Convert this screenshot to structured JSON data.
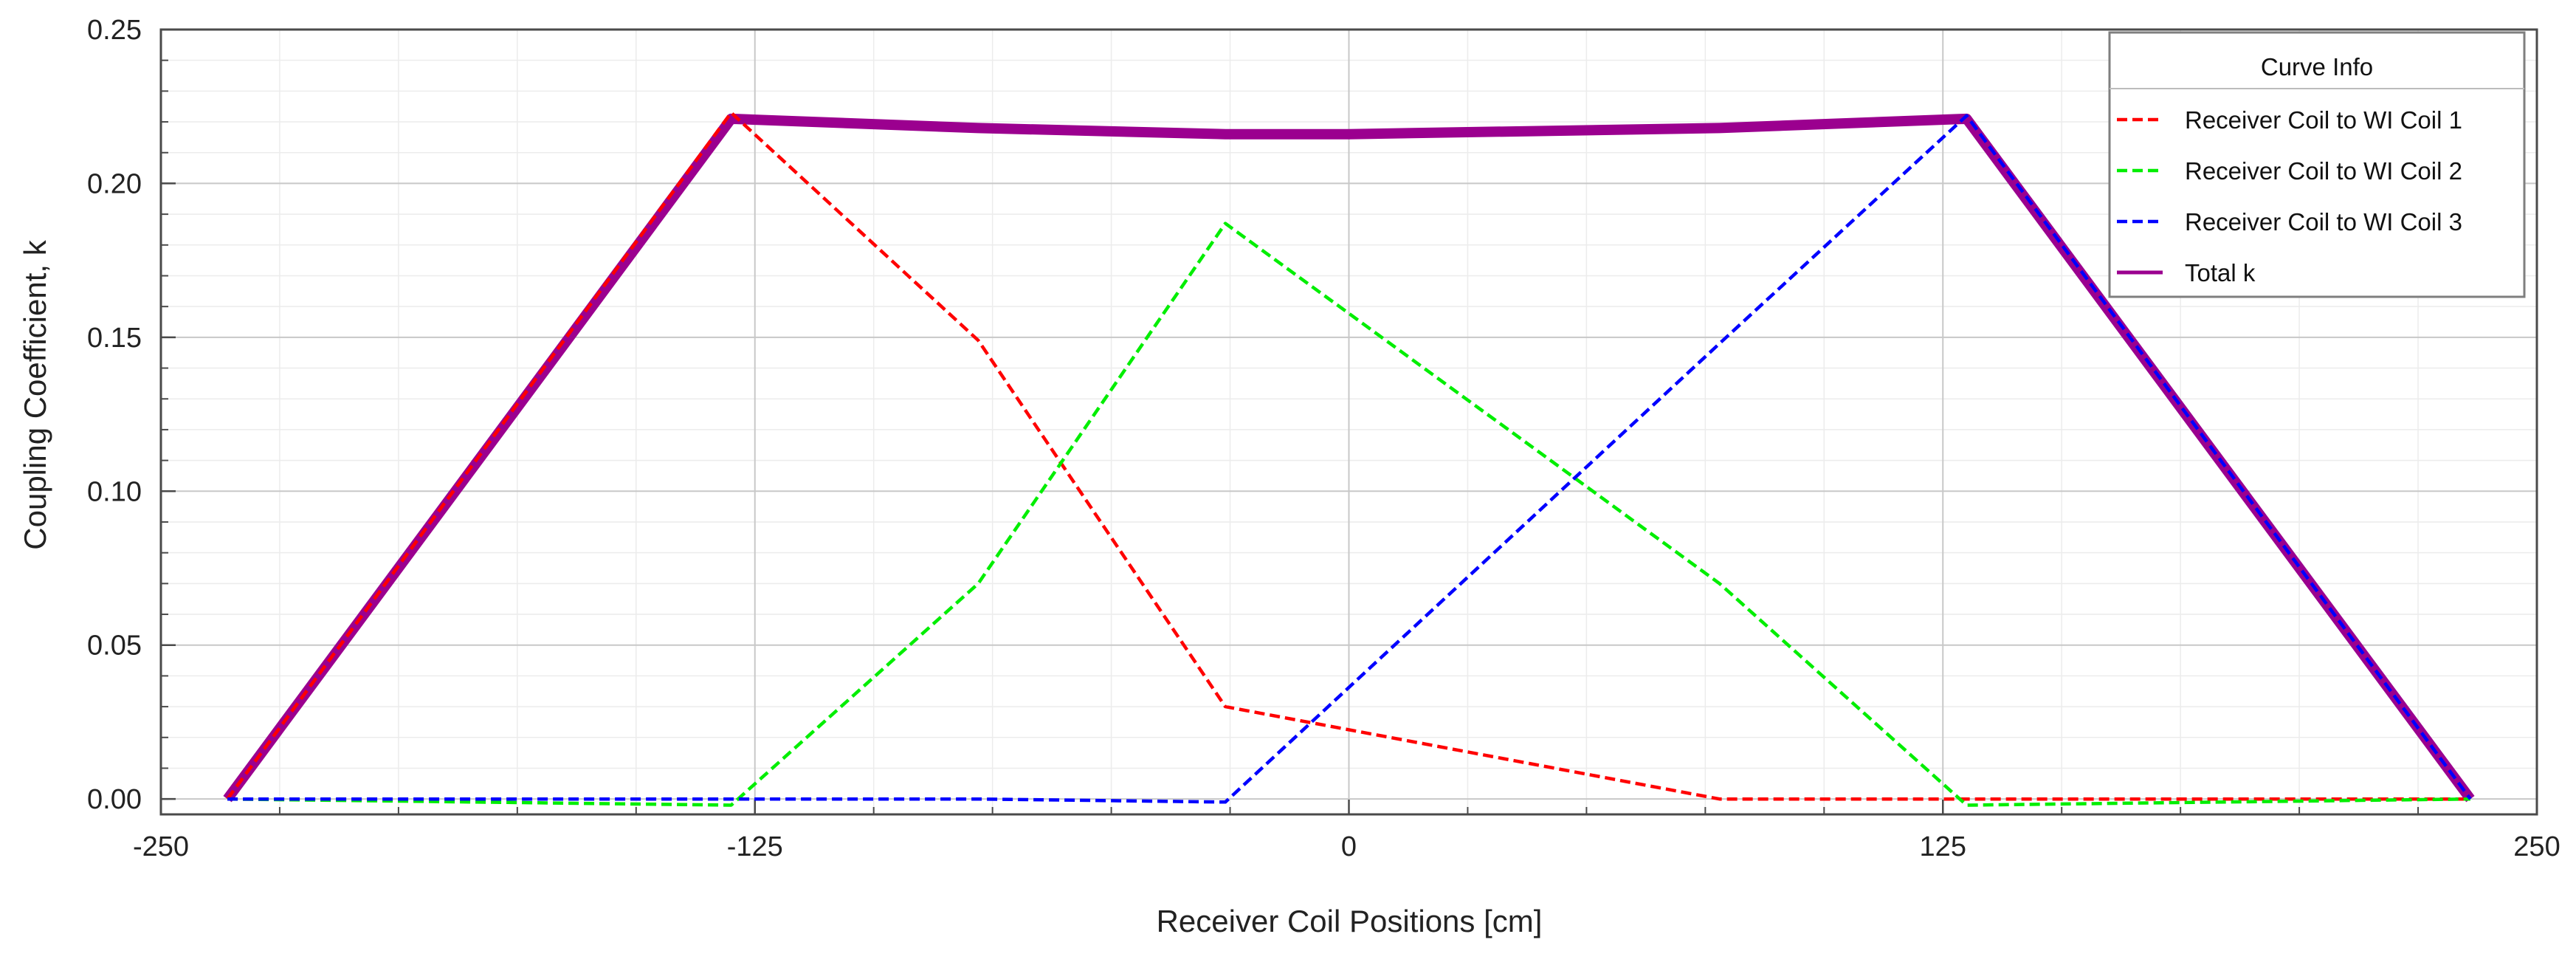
{
  "chart_data": {
    "type": "line",
    "title": "",
    "xlabel": "Receiver Coil Positions [cm]",
    "ylabel": "Coupling Coefficient, k",
    "xlim": [
      -250,
      250
    ],
    "ylim": [
      -0.005,
      0.25
    ],
    "x_ticks": [
      "-250",
      "-125",
      "0",
      "125",
      "250"
    ],
    "y_ticks": [
      "0.00",
      "0.05",
      "0.10",
      "0.15",
      "0.20",
      "0.25"
    ],
    "grid": true,
    "legend": {
      "title": "Curve Info",
      "position": "top-right"
    },
    "series": [
      {
        "name": "Receiver Coil to WI Coil 1",
        "color": "#ff0000",
        "style": "dashed",
        "x": [
          -236,
          -130,
          -78,
          -26,
          78,
          130,
          236
        ],
        "y": [
          0.0,
          0.223,
          0.149,
          0.03,
          0.0,
          0.0,
          0.0
        ]
      },
      {
        "name": "Receiver Coil to WI Coil 2",
        "color": "#00ee00",
        "style": "dashed",
        "x": [
          -236,
          -130,
          -78,
          -26,
          78,
          130,
          236
        ],
        "y": [
          0.0,
          -0.002,
          0.07,
          0.187,
          0.07,
          -0.002,
          0.0
        ]
      },
      {
        "name": "Receiver Coil to WI Coil 3",
        "color": "#0000ff",
        "style": "dashed",
        "x": [
          -236,
          -130,
          -78,
          -26,
          78,
          130,
          236
        ],
        "y": [
          0.0,
          0.0,
          0.0,
          -0.001,
          0.148,
          0.222,
          0.0
        ]
      },
      {
        "name": "Total k",
        "color": "#9b008f",
        "style": "solid",
        "x": [
          -236,
          -130,
          -78,
          -26,
          0,
          78,
          130,
          236
        ],
        "y": [
          0.0,
          0.221,
          0.218,
          0.216,
          0.216,
          0.218,
          0.221,
          0.0
        ]
      }
    ]
  }
}
